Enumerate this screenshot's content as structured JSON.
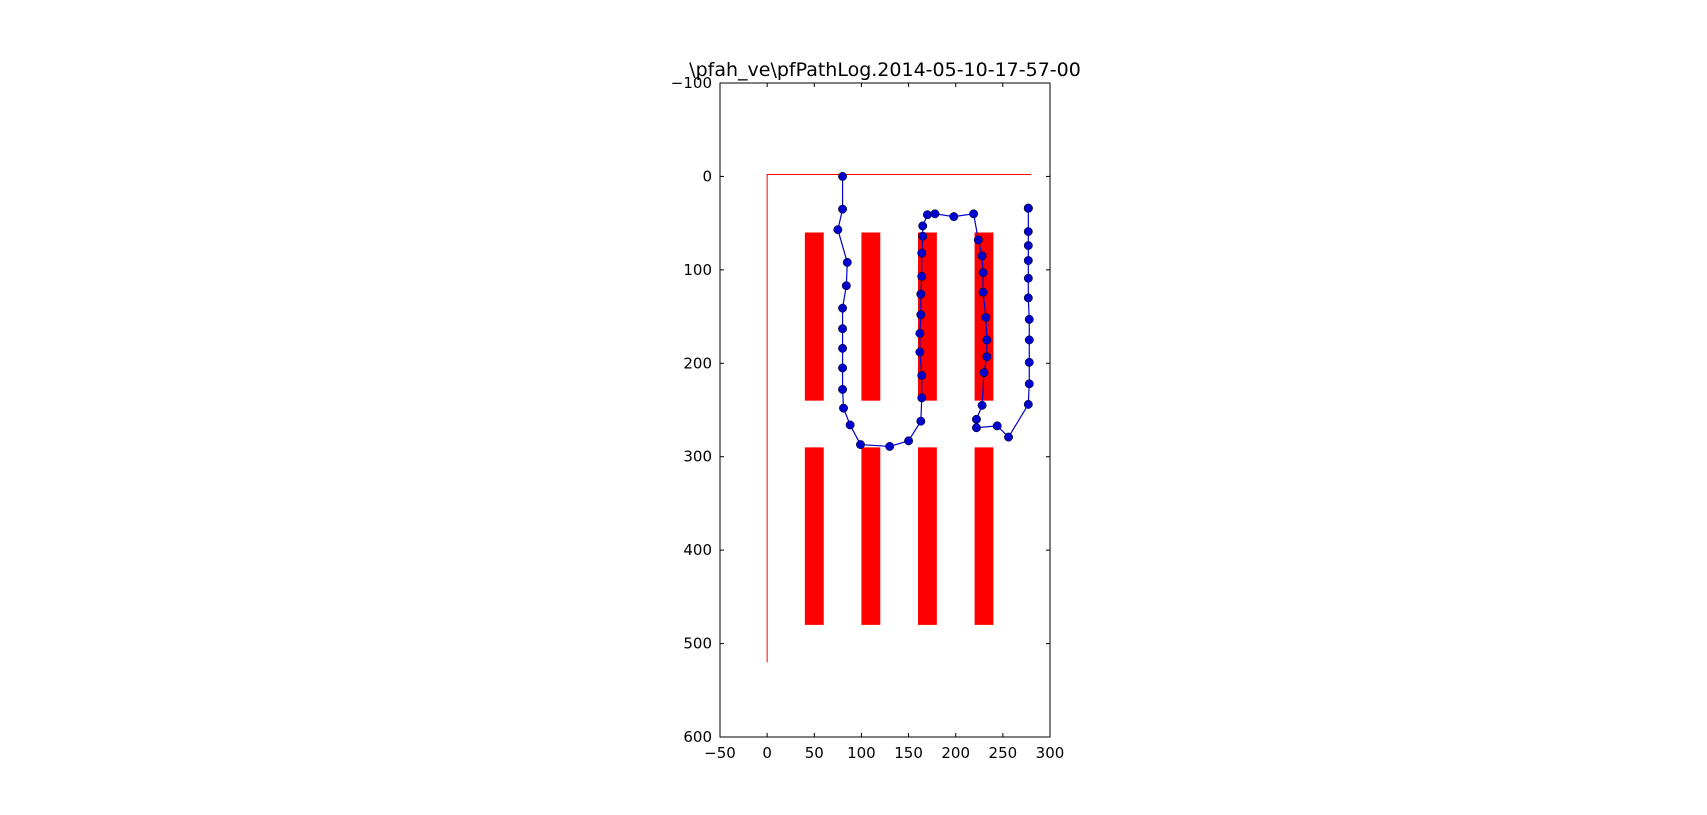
{
  "chart_data": {
    "type": "scatter",
    "title": "\\pfah_ve\\pfPathLog.2014-05-10-17-57-00",
    "xlim": [
      -50,
      300
    ],
    "ylim": [
      -100,
      600
    ],
    "y_inverted": true,
    "xticks": [
      -50,
      0,
      50,
      100,
      150,
      200,
      250,
      300
    ],
    "yticks": [
      -100,
      0,
      100,
      200,
      300,
      400,
      500,
      600
    ],
    "xtick_labels": [
      "−50",
      "0",
      "50",
      "100",
      "150",
      "200",
      "250",
      "300"
    ],
    "ytick_labels": [
      "−100",
      "0",
      "100",
      "200",
      "300",
      "400",
      "500",
      "600"
    ],
    "grid": false,
    "colors": {
      "path": "#0000cc",
      "obstacles": "#ff0000",
      "boundary": "#ff0000"
    },
    "boundary": [
      [
        0,
        520
      ],
      [
        0,
        -2
      ],
      [
        280,
        -2
      ]
    ],
    "obstacles": [
      {
        "x": [
          40,
          60
        ],
        "y": [
          60,
          240
        ]
      },
      {
        "x": [
          100,
          120
        ],
        "y": [
          60,
          240
        ]
      },
      {
        "x": [
          160,
          180
        ],
        "y": [
          60,
          240
        ]
      },
      {
        "x": [
          220,
          240
        ],
        "y": [
          60,
          240
        ]
      },
      {
        "x": [
          40,
          60
        ],
        "y": [
          290,
          480
        ]
      },
      {
        "x": [
          100,
          120
        ],
        "y": [
          290,
          480
        ]
      },
      {
        "x": [
          160,
          180
        ],
        "y": [
          290,
          480
        ]
      },
      {
        "x": [
          220,
          240
        ],
        "y": [
          290,
          480
        ]
      }
    ],
    "series": [
      {
        "x": [
          80,
          80,
          75,
          85,
          84,
          80,
          80,
          80,
          80,
          80,
          81,
          88,
          99,
          130,
          150,
          163,
          164,
          164,
          162,
          162,
          163,
          163,
          164,
          164,
          165,
          165,
          170,
          178,
          198,
          219,
          224,
          228,
          229,
          229,
          232,
          233,
          233,
          230,
          228,
          222,
          222,
          244,
          256,
          277,
          278,
          278,
          278,
          278,
          277,
          277,
          277,
          277,
          277,
          277,
          277,
          277
        ],
        "y": [
          0,
          35,
          57,
          92,
          117,
          141,
          163,
          184,
          205,
          228,
          248,
          266,
          287,
          289,
          283,
          262,
          237,
          213,
          188,
          168,
          148,
          126,
          107,
          82,
          64,
          53,
          41,
          40,
          43,
          40,
          68,
          85,
          103,
          124,
          151,
          175,
          193,
          210,
          245,
          260,
          269,
          267,
          279,
          244,
          222,
          199,
          175,
          153,
          130,
          109,
          90,
          74,
          59,
          34,
          34,
          34
        ]
      }
    ]
  }
}
